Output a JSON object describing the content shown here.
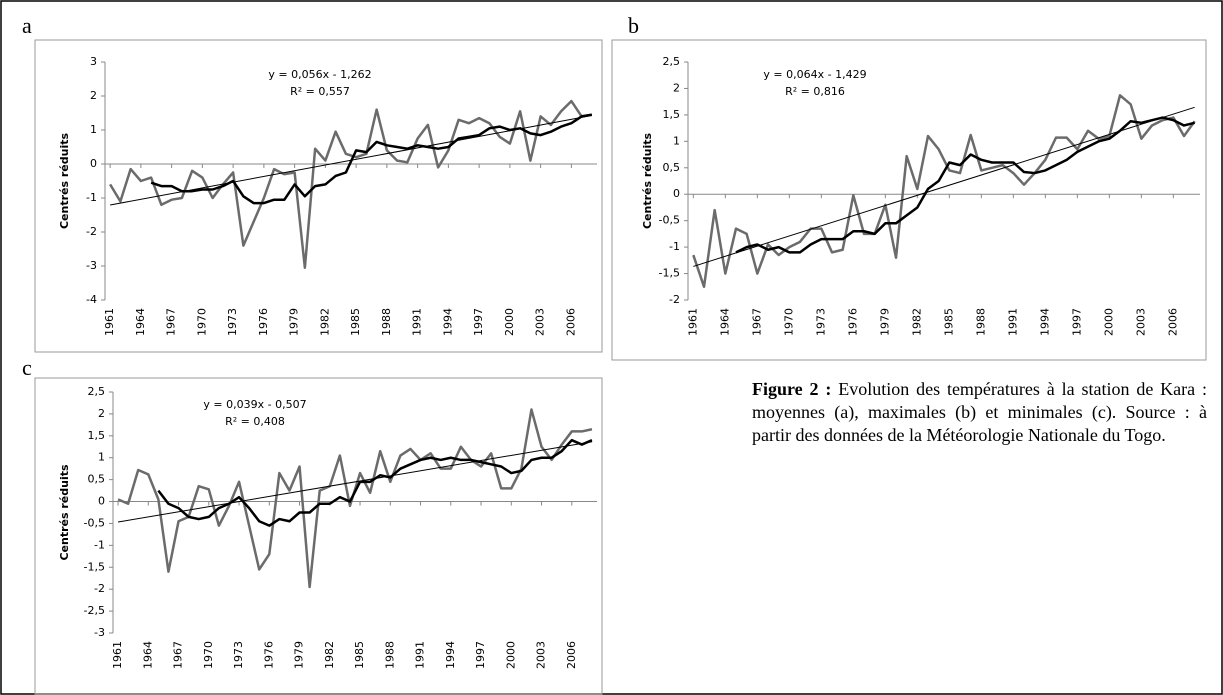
{
  "chart_data": [
    {
      "type": "line",
      "panel": "a",
      "y_label": "Centrés réduits",
      "annotations": [
        "y = 0,056x - 1,262",
        "R² = 0,557"
      ],
      "x": [
        1961,
        1962,
        1963,
        1964,
        1965,
        1966,
        1967,
        1968,
        1969,
        1970,
        1971,
        1972,
        1973,
        1974,
        1975,
        1976,
        1977,
        1978,
        1979,
        1980,
        1981,
        1982,
        1983,
        1984,
        1985,
        1986,
        1987,
        1988,
        1989,
        1990,
        1991,
        1992,
        1993,
        1994,
        1995,
        1996,
        1997,
        1998,
        1999,
        2000,
        2001,
        2002,
        2003,
        2004,
        2005,
        2006,
        2007,
        2008
      ],
      "xlim": [
        1960.5,
        2008.5
      ],
      "xticks": [
        1961,
        1964,
        1967,
        1970,
        1973,
        1976,
        1979,
        1982,
        1985,
        1988,
        1991,
        1994,
        1997,
        2000,
        2003,
        2006
      ],
      "ylim": [
        -4,
        3
      ],
      "yticks": [
        -4,
        -3,
        -2,
        -1,
        0,
        1,
        2,
        3
      ],
      "series": [
        {
          "color": "#6b6b6b",
          "values": [
            -0.6,
            -1.1,
            -0.15,
            -0.5,
            -0.4,
            -1.2,
            -1.05,
            -1.0,
            -0.2,
            -0.4,
            -1.0,
            -0.6,
            -0.25,
            -2.4,
            -1.7,
            -1.0,
            -0.15,
            -0.3,
            -0.25,
            -3.05,
            0.45,
            0.1,
            0.95,
            0.3,
            0.2,
            0.3,
            1.6,
            0.4,
            0.1,
            0.05,
            0.75,
            1.15,
            -0.1,
            0.4,
            1.3,
            1.2,
            1.35,
            1.2,
            0.8,
            0.6,
            1.55,
            0.1,
            1.4,
            1.15,
            1.55,
            1.85,
            1.4,
            1.45
          ]
        },
        {
          "color": "#000000",
          "values": [
            null,
            null,
            null,
            null,
            -0.55,
            -0.65,
            -0.65,
            -0.8,
            -0.8,
            -0.75,
            -0.75,
            -0.65,
            -0.5,
            -0.95,
            -1.15,
            -1.15,
            -1.05,
            -1.05,
            -0.6,
            -0.95,
            -0.65,
            -0.6,
            -0.35,
            -0.25,
            0.4,
            0.35,
            0.65,
            0.55,
            0.5,
            0.45,
            0.55,
            0.5,
            0.45,
            0.5,
            0.75,
            0.8,
            0.85,
            1.05,
            1.1,
            1.0,
            1.05,
            0.9,
            0.85,
            0.95,
            1.1,
            1.2,
            1.4,
            1.45
          ]
        },
        {
          "color": "#000000",
          "x": [
            1961,
            2008
          ],
          "values": [
            -1.206,
            1.426
          ]
        }
      ]
    },
    {
      "type": "line",
      "panel": "b",
      "y_label": "Centrés réduits",
      "annotations": [
        "y = 0,064x - 1,429",
        "R² = 0,816"
      ],
      "x": [
        1961,
        1962,
        1963,
        1964,
        1965,
        1966,
        1967,
        1968,
        1969,
        1970,
        1971,
        1972,
        1973,
        1974,
        1975,
        1976,
        1977,
        1978,
        1979,
        1980,
        1981,
        1982,
        1983,
        1984,
        1985,
        1986,
        1987,
        1988,
        1989,
        1990,
        1991,
        1992,
        1993,
        1994,
        1995,
        1996,
        1997,
        1998,
        1999,
        2000,
        2001,
        2002,
        2003,
        2004,
        2005,
        2006,
        2007,
        2008
      ],
      "xlim": [
        1960.5,
        2008.5
      ],
      "xticks": [
        1961,
        1964,
        1967,
        1970,
        1973,
        1976,
        1979,
        1982,
        1985,
        1988,
        1991,
        1994,
        1997,
        2000,
        2003,
        2006
      ],
      "ylim": [
        -2,
        2.5
      ],
      "yticks": [
        -2,
        {
          "value": -1.5,
          "label": "-1,5"
        },
        -1,
        {
          "value": -0.5,
          "label": "-0,5"
        },
        0,
        {
          "value": 0.5,
          "label": "0,5"
        },
        1,
        {
          "value": 1.5,
          "label": "1,5"
        },
        2,
        {
          "value": 2.5,
          "label": "2,5"
        }
      ],
      "series": [
        {
          "color": "#6b6b6b",
          "values": [
            -1.15,
            -1.75,
            -0.3,
            -1.5,
            -0.65,
            -0.75,
            -1.5,
            -0.95,
            -1.15,
            -1.0,
            -0.9,
            -0.65,
            -0.65,
            -1.1,
            -1.05,
            -0.02,
            -0.75,
            -0.75,
            -0.2,
            -1.2,
            0.72,
            0.1,
            1.1,
            0.85,
            0.45,
            0.4,
            1.12,
            0.45,
            0.5,
            0.55,
            0.4,
            0.18,
            0.4,
            0.65,
            1.07,
            1.07,
            0.85,
            1.2,
            1.05,
            1.1,
            1.87,
            1.7,
            1.05,
            1.3,
            1.4,
            1.45,
            1.1,
            1.38
          ]
        },
        {
          "color": "#000000",
          "values": [
            null,
            null,
            null,
            null,
            -1.1,
            -1.0,
            -0.95,
            -1.05,
            -1.0,
            -1.1,
            -1.1,
            -0.95,
            -0.85,
            -0.85,
            -0.85,
            -0.7,
            -0.7,
            -0.75,
            -0.55,
            -0.55,
            -0.4,
            -0.25,
            0.1,
            0.25,
            0.6,
            0.55,
            0.75,
            0.65,
            0.6,
            0.6,
            0.6,
            0.42,
            0.4,
            0.45,
            0.55,
            0.65,
            0.8,
            0.9,
            1.0,
            1.05,
            1.2,
            1.38,
            1.35,
            1.4,
            1.45,
            1.4,
            1.3,
            1.35
          ]
        },
        {
          "color": "#000000",
          "x": [
            1961,
            2008
          ],
          "values": [
            -1.365,
            1.643
          ]
        }
      ]
    },
    {
      "type": "line",
      "panel": "c",
      "y_label": "Centrés réduits",
      "annotations": [
        "y = 0,039x - 0,507",
        "R² = 0,408"
      ],
      "x": [
        1961,
        1962,
        1963,
        1964,
        1965,
        1966,
        1967,
        1968,
        1969,
        1970,
        1971,
        1972,
        1973,
        1974,
        1975,
        1976,
        1977,
        1978,
        1979,
        1980,
        1981,
        1982,
        1983,
        1984,
        1985,
        1986,
        1987,
        1988,
        1989,
        1990,
        1991,
        1992,
        1993,
        1994,
        1995,
        1996,
        1997,
        1998,
        1999,
        2000,
        2001,
        2002,
        2003,
        2004,
        2005,
        2006,
        2007,
        2008
      ],
      "xlim": [
        1960.5,
        2008.5
      ],
      "xticks": [
        1961,
        1964,
        1967,
        1970,
        1973,
        1976,
        1979,
        1982,
        1985,
        1988,
        1991,
        1994,
        1997,
        2000,
        2003,
        2006
      ],
      "ylim": [
        -3,
        2.5
      ],
      "yticks": [
        -3,
        {
          "value": -2.5,
          "label": "-2,5"
        },
        -2,
        {
          "value": -1.5,
          "label": "-1,5"
        },
        -1,
        {
          "value": -0.5,
          "label": "-0,5"
        },
        0,
        {
          "value": 0.5,
          "label": "0,5"
        },
        1,
        {
          "value": 1.5,
          "label": "1,5"
        },
        2,
        {
          "value": 2.5,
          "label": "2,5"
        }
      ],
      "series": [
        {
          "color": "#6b6b6b",
          "values": [
            0.05,
            -0.05,
            0.72,
            0.62,
            0.05,
            -1.6,
            -0.45,
            -0.35,
            0.35,
            0.28,
            -0.55,
            -0.1,
            0.45,
            -0.55,
            -1.55,
            -1.2,
            0.65,
            0.25,
            0.8,
            -1.95,
            0.25,
            0.35,
            1.05,
            -0.1,
            0.65,
            0.2,
            1.15,
            0.45,
            1.05,
            1.2,
            0.95,
            1.1,
            0.75,
            0.75,
            1.25,
            0.95,
            0.8,
            1.1,
            0.3,
            0.3,
            0.75,
            2.1,
            1.25,
            0.95,
            1.3,
            1.6,
            1.6,
            1.65
          ]
        },
        {
          "color": "#000000",
          "values": [
            null,
            null,
            null,
            null,
            0.25,
            -0.05,
            -0.15,
            -0.35,
            -0.4,
            -0.35,
            -0.15,
            -0.05,
            0.1,
            -0.15,
            -0.45,
            -0.55,
            -0.4,
            -0.45,
            -0.25,
            -0.25,
            -0.05,
            -0.05,
            0.1,
            0.0,
            0.45,
            0.45,
            0.6,
            0.55,
            0.75,
            0.85,
            0.95,
            1.0,
            0.95,
            1.0,
            0.95,
            0.95,
            0.9,
            0.85,
            0.8,
            0.65,
            0.7,
            0.95,
            1.0,
            1.0,
            1.15,
            1.4,
            1.3,
            1.4
          ]
        },
        {
          "color": "#000000",
          "x": [
            1961,
            2008
          ],
          "values": [
            -0.468,
            1.365
          ]
        }
      ]
    }
  ],
  "caption": {
    "label": "Figure 2 :",
    "text": " Evolution des températures à la station de Kara : moyennes (a), maximales (b) et minimales (c). Source : à partir des données de la Météorologie Nationale du Togo."
  }
}
